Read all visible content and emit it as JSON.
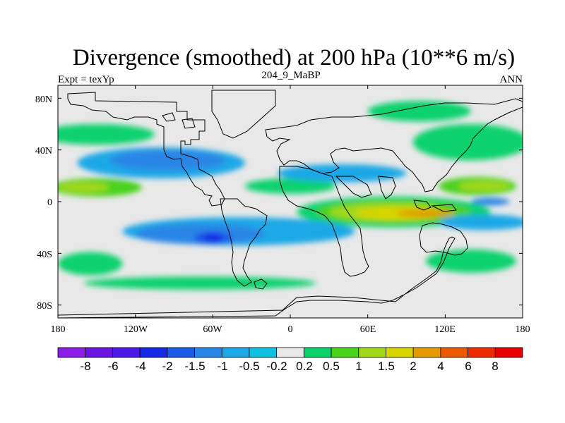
{
  "chart_data": {
    "type": "heatmap",
    "title": "Divergence (smoothed) at 200 hPa (10**6 m/s)",
    "left_label": "Expt = texYp",
    "center_label": "204_9_MaBP",
    "right_label": "ANN",
    "x_ticks": [
      "180",
      "120W",
      "60W",
      "0",
      "60E",
      "120E",
      "180"
    ],
    "y_ticks": [
      "80N",
      "40N",
      "0",
      "40S",
      "80S"
    ],
    "xlim": [
      -180,
      180
    ],
    "ylim": [
      -90,
      90
    ],
    "background_color": "#e8e8e8",
    "colorbar": {
      "levels": [
        "-8",
        "-6",
        "-4",
        "-2",
        "-1.5",
        "-1",
        "-0.5",
        "-0.2",
        "0.2",
        "0.5",
        "1",
        "1.5",
        "2",
        "4",
        "6",
        "8"
      ],
      "colors": [
        "#8c1ce8",
        "#6a14e0",
        "#4c1ae6",
        "#1428e6",
        "#1a5ae6",
        "#2a86e6",
        "#1aa8e6",
        "#10c0e0",
        "#e8e8e8",
        "#0ad26e",
        "#4ad21a",
        "#a0d81a",
        "#d8d400",
        "#e29a00",
        "#ec5a00",
        "#ec2a00",
        "#e60000"
      ]
    },
    "shading": [
      {
        "level": "0.5",
        "color": "#0ad26e",
        "lon": -150,
        "lat": 52,
        "w": 90,
        "h": 8
      },
      {
        "level": "0.5",
        "color": "#0ad26e",
        "lon": 140,
        "lat": 46,
        "w": 90,
        "h": 14
      },
      {
        "level": "0.5",
        "color": "#0ad26e",
        "lon": 100,
        "lat": 70,
        "w": 80,
        "h": 8
      },
      {
        "level": "1",
        "color": "#4ad21a",
        "lon": -150,
        "lat": 11,
        "w": 70,
        "h": 7
      },
      {
        "level": "1.5",
        "color": "#a0d81a",
        "lon": -160,
        "lat": 11,
        "w": 40,
        "h": 4
      },
      {
        "level": "0.5",
        "color": "#0ad26e",
        "lon": 0,
        "lat": 12,
        "w": 70,
        "h": 6
      },
      {
        "level": "1",
        "color": "#4ad21a",
        "lon": 145,
        "lat": 12,
        "w": 60,
        "h": 7
      },
      {
        "level": "1.5",
        "color": "#a0d81a",
        "lon": 150,
        "lat": 12,
        "w": 40,
        "h": 4
      },
      {
        "level": "0.5",
        "color": "#0ad26e",
        "lon": 80,
        "lat": -8,
        "w": 150,
        "h": 12
      },
      {
        "level": "1",
        "color": "#4ad21a",
        "lon": 80,
        "lat": -8,
        "w": 120,
        "h": 9
      },
      {
        "level": "1.5",
        "color": "#a0d81a",
        "lon": 75,
        "lat": -8,
        "w": 90,
        "h": 7
      },
      {
        "level": "2",
        "color": "#d8d400",
        "lon": 85,
        "lat": -9,
        "w": 70,
        "h": 5
      },
      {
        "level": "4",
        "color": "#e29a00",
        "lon": 105,
        "lat": -9,
        "w": 45,
        "h": 3
      },
      {
        "level": "0.5",
        "color": "#0ad26e",
        "lon": -70,
        "lat": -63,
        "w": 180,
        "h": 5
      },
      {
        "level": "0.5",
        "color": "#0ad26e",
        "lon": -155,
        "lat": -48,
        "w": 50,
        "h": 9
      },
      {
        "level": "0.5",
        "color": "#0ad26e",
        "lon": 140,
        "lat": -46,
        "w": 70,
        "h": 9
      },
      {
        "level": "-0.5",
        "color": "#1aa8e6",
        "lon": -100,
        "lat": 30,
        "w": 130,
        "h": 12
      },
      {
        "level": "-1",
        "color": "#2a86e6",
        "lon": -95,
        "lat": 32,
        "w": 90,
        "h": 8
      },
      {
        "level": "-0.5",
        "color": "#1aa8e6",
        "lon": 40,
        "lat": 22,
        "w": 100,
        "h": 7
      },
      {
        "level": "-0.5",
        "color": "#1aa8e6",
        "lon": -40,
        "lat": -23,
        "w": 180,
        "h": 11
      },
      {
        "level": "-1",
        "color": "#2a86e6",
        "lon": -70,
        "lat": -25,
        "w": 100,
        "h": 8
      },
      {
        "level": "-1.5",
        "color": "#1a5ae6",
        "lon": -60,
        "lat": -28,
        "w": 30,
        "h": 5
      },
      {
        "level": "-2",
        "color": "#1428e6",
        "lon": -60,
        "lat": -28,
        "w": 15,
        "h": 3
      },
      {
        "level": "-1",
        "color": "#2a86e6",
        "lon": 155,
        "lat": 0,
        "w": 30,
        "h": 3
      },
      {
        "level": "-0.5",
        "color": "#1aa8e6",
        "lon": 150,
        "lat": -16,
        "w": 70,
        "h": 6
      }
    ]
  }
}
